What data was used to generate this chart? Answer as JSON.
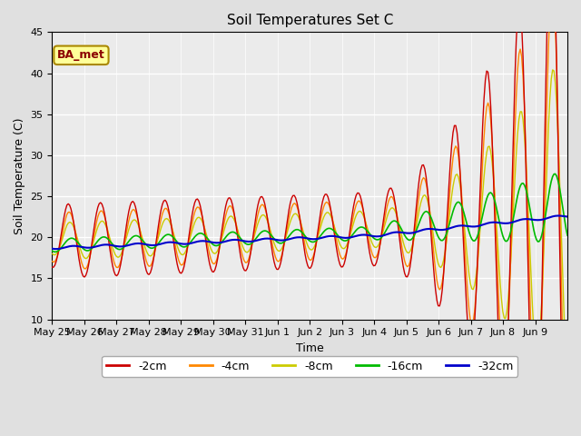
{
  "title": "Soil Temperatures Set C",
  "xlabel": "Time",
  "ylabel": "Soil Temperature (C)",
  "ylim": [
    10,
    45
  ],
  "yticks": [
    10,
    15,
    20,
    25,
    30,
    35,
    40,
    45
  ],
  "xtick_labels": [
    "May 25",
    "May 26",
    "May 27",
    "May 28",
    "May 29",
    "May 30",
    "May 31",
    "Jun 1",
    "Jun 2",
    "Jun 3",
    "Jun 4",
    "Jun 5",
    "Jun 6",
    "Jun 7",
    "Jun 8",
    "Jun 9"
  ],
  "annotation": "BA_met",
  "colors": {
    "-2cm": "#cc0000",
    "-4cm": "#ff8800",
    "-8cm": "#cccc00",
    "-16cm": "#00bb00",
    "-32cm": "#0000cc"
  },
  "legend_labels": [
    "-2cm",
    "-4cm",
    "-8cm",
    "-16cm",
    "-32cm"
  ],
  "bg_color": "#e0e0e0",
  "plot_bg_color": "#ebebeb"
}
